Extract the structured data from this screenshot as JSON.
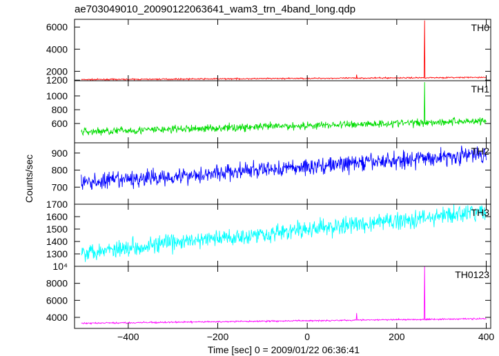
{
  "chart_data": {
    "type": "line",
    "title": "ae703049010_20090122063641_wam3_trn_4band_long.qdp",
    "xlabel": "Time [sec] 0 = 2009/01/22 06:36:41",
    "ylabel": "Counts/sec",
    "xlim": [
      -520,
      410
    ],
    "x_range": [
      -505,
      400
    ],
    "x_ticks": [
      -400,
      -200,
      0,
      200,
      400
    ],
    "x_tick_labels": [
      "−400",
      "−200",
      "0",
      "200",
      "400"
    ],
    "grid": false,
    "panels": [
      {
        "label": "TH0",
        "color": "#ff0000",
        "ylim": [
          1150,
          6700
        ],
        "y_ticks": [
          1200,
          2000,
          4000,
          6000
        ],
        "y_tick_labels": [
          "1200",
          "2000",
          "4000",
          "6000"
        ],
        "base_start": 1250,
        "base_end": 1450,
        "noise": 40,
        "spikes": [
          {
            "x": 110,
            "y": 1700
          },
          {
            "x": 262,
            "y": 6600
          }
        ]
      },
      {
        "label": "TH1",
        "color": "#00dd00",
        "ylim": [
          320,
          1220
        ],
        "y_ticks": [
          600,
          800,
          1000
        ],
        "y_tick_labels": [
          "600",
          "800",
          "1000"
        ],
        "base_start": 480,
        "base_end": 640,
        "noise": 40,
        "spikes": [
          {
            "x": 262,
            "y": 1200
          }
        ]
      },
      {
        "label": "TH2",
        "color": "#0000ff",
        "ylim": [
          600,
          960
        ],
        "y_ticks": [
          700,
          800,
          900
        ],
        "y_tick_labels": [
          "700",
          "800",
          "900"
        ],
        "base_start": 725,
        "base_end": 895,
        "noise": 35,
        "spikes": []
      },
      {
        "label": "TH3",
        "color": "#00ffff",
        "ylim": [
          1200,
          1700
        ],
        "y_ticks": [
          1300,
          1400,
          1500,
          1600,
          1700
        ],
        "y_tick_labels": [
          "1300",
          "1400",
          "1500",
          "1600",
          "1700"
        ],
        "base_start": 1315,
        "base_end": 1640,
        "noise": 50,
        "spikes": []
      },
      {
        "label": "TH0123",
        "color": "#ff00ff",
        "ylim": [
          2700,
          10000
        ],
        "y_ticks": [
          4000,
          6000,
          8000,
          10000
        ],
        "y_tick_labels": [
          "4000",
          "6000",
          "8000",
          "10⁴"
        ],
        "base_start": 3300,
        "base_end": 3850,
        "noise": 60,
        "spikes": [
          {
            "x": 110,
            "y": 4500
          },
          {
            "x": 262,
            "y": 10200
          }
        ]
      }
    ]
  }
}
